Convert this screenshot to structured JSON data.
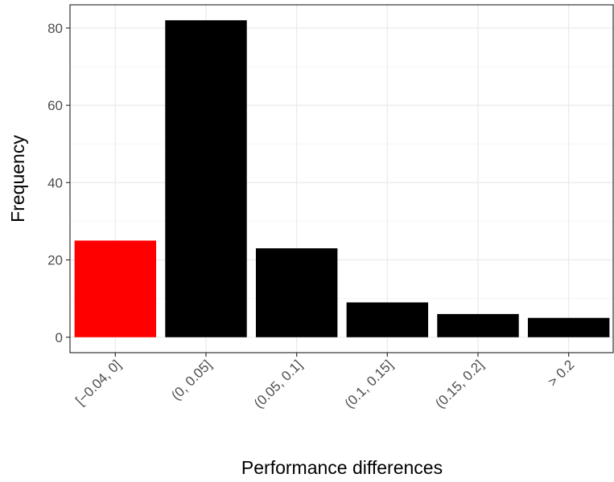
{
  "chart_data": {
    "type": "bar",
    "categories": [
      "[−0.04, 0]",
      "(0, 0.05]",
      "(0.05, 0.1]",
      "(0.1, 0.15]",
      "(0.15, 0.2]",
      "> 0.2"
    ],
    "values": [
      25,
      82,
      23,
      9,
      6,
      5
    ],
    "bar_colors": [
      "#ff0000",
      "#000000",
      "#000000",
      "#000000",
      "#000000",
      "#000000"
    ],
    "xlabel": "Performance differences",
    "ylabel": "Frequency",
    "ylim": [
      -4,
      86
    ],
    "yticks": [
      0,
      20,
      40,
      60,
      80
    ],
    "grid": true,
    "theme_colors": {
      "grid_major": "#ebebeb",
      "grid_minor": "#f5f5f5",
      "panel_border": "#333333",
      "tick_text": "#4d4d4d"
    }
  }
}
